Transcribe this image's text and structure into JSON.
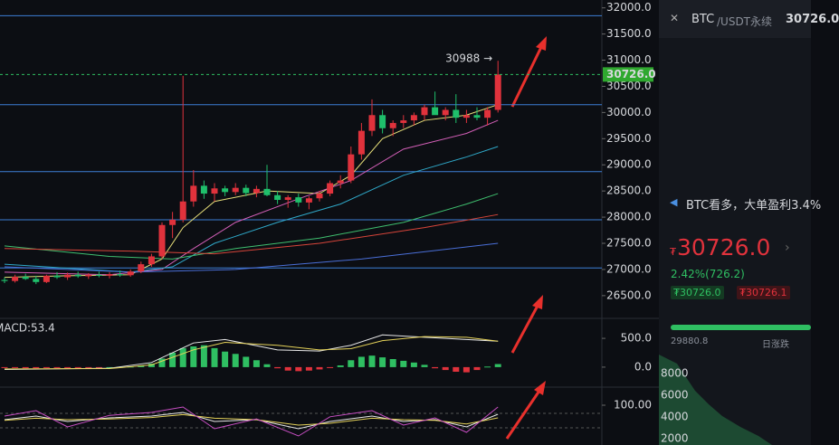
{
  "chart_data": [
    {
      "type": "candlestick",
      "ylim": [
        26100,
        32150
      ],
      "yticks": [
        {
          "value": 32000,
          "label": "32000.0"
        },
        {
          "value": 31500,
          "label": "31500.0"
        },
        {
          "value": 31000,
          "label": "31000.0"
        },
        {
          "value": 30500,
          "label": "30500.0"
        },
        {
          "value": 30000,
          "label": "30000.0"
        },
        {
          "value": 29500,
          "label": "29500.0"
        },
        {
          "value": 29000,
          "label": "29000.0"
        },
        {
          "value": 28500,
          "label": "28500.0"
        },
        {
          "value": 28000,
          "label": "28000.0"
        },
        {
          "value": 27500,
          "label": "27500.0"
        },
        {
          "value": 27000,
          "label": "27000.0"
        },
        {
          "value": 26500,
          "label": "26500.0"
        }
      ],
      "up_color": "#e0323c",
      "down_color": "#1fbf6b",
      "open": [
        26800,
        26780,
        26860,
        26820,
        26760,
        26880,
        26850,
        26900,
        26870,
        26900,
        26880,
        26910,
        26890,
        26960,
        27100,
        27250,
        27850,
        27950,
        28300,
        28600,
        28450,
        28550,
        28480,
        28560,
        28460,
        28540,
        28420,
        28330,
        28380,
        28280,
        28360,
        28450,
        28650,
        28700,
        29200,
        29650,
        29950,
        29700,
        29800,
        29850,
        29950,
        30100,
        29950,
        30050,
        29900,
        29950,
        29900,
        30050
      ],
      "high": [
        26850,
        26900,
        26920,
        26880,
        26900,
        26950,
        26940,
        26960,
        26930,
        26960,
        26950,
        26980,
        27000,
        27150,
        27300,
        27900,
        28100,
        30700,
        28900,
        28700,
        28650,
        28600,
        28650,
        28620,
        28600,
        29000,
        28500,
        28420,
        28450,
        28400,
        28500,
        28700,
        28800,
        29350,
        29800,
        30250,
        30050,
        29850,
        29950,
        30000,
        30150,
        30400,
        30100,
        30350,
        30050,
        30100,
        30100,
        30988
      ],
      "low": [
        26740,
        26750,
        26800,
        26720,
        26740,
        26820,
        26800,
        26840,
        26820,
        26850,
        26830,
        26860,
        26860,
        26930,
        27050,
        27200,
        27600,
        27900,
        28200,
        28350,
        28300,
        28400,
        28420,
        28400,
        28380,
        28400,
        28250,
        28180,
        28200,
        28150,
        28300,
        28400,
        28550,
        28650,
        29100,
        29550,
        29600,
        29550,
        29700,
        29750,
        29850,
        30000,
        29850,
        29800,
        29800,
        29850,
        29750,
        30000
      ],
      "close": [
        26780,
        26860,
        26820,
        26760,
        26880,
        26850,
        26900,
        26870,
        26900,
        26880,
        26910,
        26890,
        26960,
        27100,
        27250,
        27850,
        27950,
        28300,
        28600,
        28450,
        28550,
        28480,
        28560,
        28460,
        28540,
        28420,
        28330,
        28380,
        28280,
        28360,
        28450,
        28650,
        28700,
        29200,
        29650,
        29950,
        29700,
        29800,
        29850,
        29950,
        30100,
        29950,
        30050,
        29900,
        29950,
        29900,
        30050,
        30726
      ],
      "hlines": [
        31850,
        30150,
        28870,
        27950,
        27030
      ],
      "hline_color": "#3d7fd6",
      "last_price": {
        "value": 30726,
        "label": "30726.0"
      },
      "annotation": {
        "value": 30988,
        "label": "30988 →"
      },
      "lines": [
        {
          "color": "#e8e07a",
          "x": [
            0,
            6,
            12,
            15,
            17,
            20,
            25,
            30,
            33,
            36,
            40,
            44,
            47
          ],
          "values": [
            26850,
            26880,
            26900,
            27200,
            27800,
            28300,
            28500,
            28450,
            28800,
            29500,
            29850,
            29950,
            30150
          ]
        },
        {
          "color": "#d35fb7",
          "x": [
            0,
            10,
            15,
            18,
            22,
            28,
            33,
            38,
            44,
            47
          ],
          "values": [
            26950,
            26900,
            27000,
            27400,
            27900,
            28350,
            28700,
            29300,
            29600,
            29850
          ]
        },
        {
          "color": "#2fa8c8",
          "x": [
            0,
            12,
            16,
            20,
            26,
            32,
            38,
            44,
            47
          ],
          "values": [
            27100,
            26950,
            27050,
            27500,
            27900,
            28250,
            28800,
            29150,
            29350
          ]
        },
        {
          "color": "#3fbf6f",
          "x": [
            0,
            10,
            16,
            22,
            30,
            38,
            44,
            47
          ],
          "values": [
            27450,
            27250,
            27200,
            27400,
            27600,
            27900,
            28250,
            28450
          ]
        },
        {
          "color": "#d8453a",
          "x": [
            0,
            12,
            20,
            30,
            40,
            47
          ],
          "values": [
            27400,
            27350,
            27300,
            27500,
            27800,
            28050
          ]
        },
        {
          "color": "#4a6fd8",
          "x": [
            0,
            12,
            22,
            34,
            47
          ],
          "values": [
            27050,
            26950,
            27000,
            27200,
            27500
          ]
        }
      ]
    },
    {
      "type": "bar",
      "title": "MACD:53.4",
      "ylim": [
        -300,
        800
      ],
      "yticks": [
        {
          "value": 500,
          "label": "500.0"
        },
        {
          "value": 0,
          "label": "0.0"
        }
      ],
      "pos_color": "#2fbf62",
      "neg_color": "#e0323c",
      "values": [
        -10,
        -15,
        -20,
        -20,
        -15,
        -10,
        -10,
        -5,
        -5,
        -5,
        0,
        5,
        10,
        30,
        60,
        150,
        250,
        330,
        360,
        380,
        330,
        270,
        230,
        180,
        120,
        50,
        -20,
        -60,
        -70,
        -60,
        -40,
        -10,
        30,
        120,
        180,
        200,
        170,
        140,
        110,
        80,
        40,
        -20,
        -50,
        -80,
        -90,
        -50,
        10,
        53.4
      ],
      "lines": [
        {
          "color": "#e8e8e8",
          "x": [
            0,
            10,
            14,
            18,
            21,
            26,
            30,
            33,
            36,
            40,
            44,
            47
          ],
          "values": [
            -40,
            -20,
            80,
            420,
            480,
            300,
            280,
            380,
            560,
            520,
            480,
            450
          ]
        },
        {
          "color": "#e6d35a",
          "x": [
            0,
            10,
            14,
            18,
            21,
            26,
            30,
            33,
            36,
            40,
            44,
            47
          ],
          "values": [
            -30,
            -25,
            40,
            300,
            430,
            380,
            300,
            320,
            460,
            530,
            520,
            450
          ]
        }
      ]
    },
    {
      "type": "line",
      "ylim": [
        -10,
        145
      ],
      "yticks": [
        {
          "value": 100,
          "label": "100.00"
        }
      ],
      "lines": [
        {
          "color": "#e8e8e8",
          "x": [
            0,
            3,
            6,
            10,
            14,
            17,
            20,
            24,
            28,
            31,
            35,
            38,
            41,
            44,
            47
          ],
          "values": [
            60,
            70,
            55,
            65,
            70,
            80,
            55,
            60,
            35,
            55,
            70,
            55,
            60,
            40,
            75
          ]
        },
        {
          "color": "#e6d35a",
          "x": [
            0,
            3,
            6,
            10,
            14,
            17,
            20,
            24,
            28,
            31,
            35,
            38,
            41,
            44,
            47
          ],
          "values": [
            58,
            64,
            60,
            62,
            66,
            74,
            64,
            60,
            45,
            50,
            64,
            60,
            58,
            48,
            65
          ]
        },
        {
          "color": "#c94fc4",
          "x": [
            0,
            3,
            6,
            10,
            14,
            17,
            20,
            24,
            28,
            31,
            35,
            38,
            41,
            44,
            47
          ],
          "values": [
            70,
            85,
            40,
            72,
            80,
            95,
            35,
            62,
            15,
            68,
            85,
            45,
            65,
            25,
            95
          ]
        }
      ]
    }
  ],
  "panel": {
    "symbol": "BTC",
    "pair": "/USDT永续",
    "header_price": "30726.0",
    "news": "BTC看多，大单盈利3.4%",
    "currency": "₮",
    "price": "30726.0",
    "change": "2.42%(726.2)",
    "bid": "₮30726.0",
    "ask": "₮30726.1",
    "low": "29880.8",
    "range_label": "日涨跌",
    "depth_ticks": [
      "8000",
      "6000",
      "4000",
      "2000"
    ]
  }
}
